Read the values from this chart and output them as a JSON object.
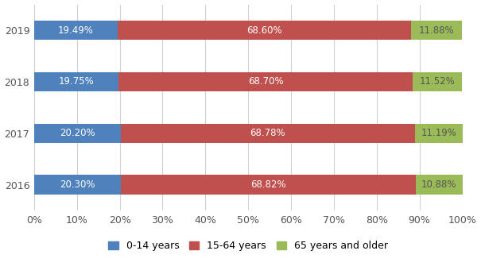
{
  "years": [
    "2016",
    "2017",
    "2018",
    "2019"
  ],
  "segments": {
    "0-14 years": [
      20.3,
      20.2,
      19.75,
      19.49
    ],
    "15-64 years": [
      68.82,
      68.78,
      68.7,
      68.6
    ],
    "65 years and older": [
      10.88,
      11.19,
      11.52,
      11.88
    ]
  },
  "colors": {
    "0-14 years": "#4f81bd",
    "15-64 years": "#c0504d",
    "65 years and older": "#9bbb59"
  },
  "labels": {
    "0-14 years": [
      "20.30%",
      "20.20%",
      "19.75%",
      "19.49%"
    ],
    "15-64 years": [
      "68.82%",
      "68.78%",
      "68.70%",
      "68.60%"
    ],
    "65 years and older": [
      "10.88%",
      "11.19%",
      "11.52%",
      "11.88%"
    ]
  },
  "xticks": [
    0,
    10,
    20,
    30,
    40,
    50,
    60,
    70,
    80,
    90,
    100
  ],
  "xlim": [
    0,
    100
  ],
  "background_color": "#ffffff",
  "grid_color": "#d0d0d0",
  "bar_height": 0.38,
  "text_fontsize": 8.5,
  "legend_fontsize": 9,
  "tick_fontsize": 9,
  "label_color_dark": "#555555",
  "label_color_light": "#ffffff"
}
